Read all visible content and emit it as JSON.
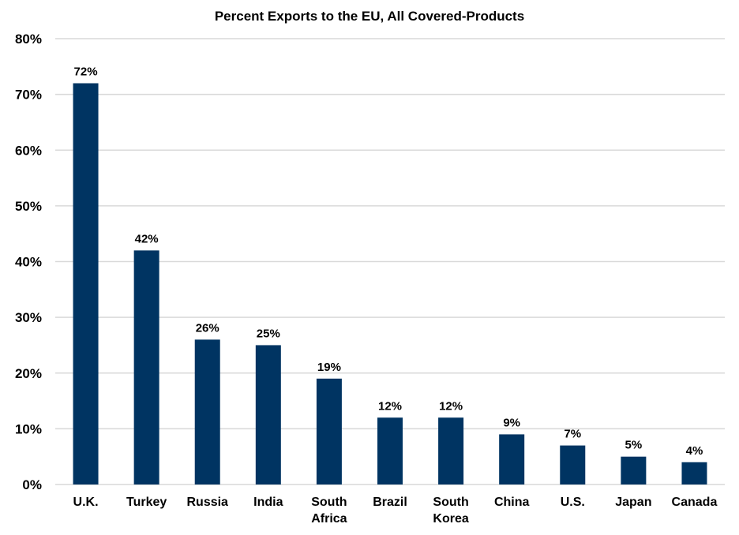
{
  "chart_data": {
    "type": "bar",
    "title": "Percent Exports to the EU, All Covered-Products",
    "xlabel": "",
    "ylabel": "",
    "categories": [
      "U.K.",
      "Turkey",
      "Russia",
      "India",
      "South Africa",
      "Brazil",
      "South Korea",
      "China",
      "U.S.",
      "Japan",
      "Canada"
    ],
    "category_lines": [
      [
        "U.K."
      ],
      [
        "Turkey"
      ],
      [
        "Russia"
      ],
      [
        "India"
      ],
      [
        "South",
        "Africa"
      ],
      [
        "Brazil"
      ],
      [
        "South",
        "Korea"
      ],
      [
        "China"
      ],
      [
        "U.S."
      ],
      [
        "Japan"
      ],
      [
        "Canada"
      ]
    ],
    "values": [
      72,
      42,
      26,
      25,
      19,
      12,
      12,
      9,
      7,
      5,
      4
    ],
    "data_labels": [
      "72%",
      "42%",
      "26%",
      "25%",
      "19%",
      "12%",
      "12%",
      "9%",
      "7%",
      "5%",
      "4%"
    ],
    "ylim": [
      0,
      80
    ],
    "yticks": [
      0,
      10,
      20,
      30,
      40,
      50,
      60,
      70,
      80
    ],
    "ytick_labels": [
      "0%",
      "10%",
      "20%",
      "30%",
      "40%",
      "50%",
      "60%",
      "70%",
      "80%"
    ],
    "grid": true,
    "legend": "none",
    "bar_color": "#003462",
    "grid_color": "#d9d9d9"
  }
}
